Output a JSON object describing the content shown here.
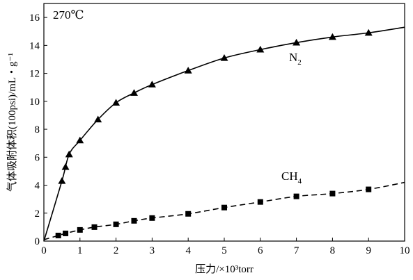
{
  "chart_data": {
    "type": "line",
    "title": "",
    "annotation": "270℃",
    "xlabel": "压力/×10³torr",
    "ylabel": "气体吸附体积(100psi)/mL・g⁻¹",
    "xlim": [
      0,
      10
    ],
    "ylim": [
      0,
      17
    ],
    "xticks": [
      "0",
      "1",
      "2",
      "3",
      "4",
      "5",
      "6",
      "7",
      "8",
      "9",
      "10"
    ],
    "yticks": [
      "0",
      "2",
      "4",
      "6",
      "8",
      "10",
      "12",
      "14",
      "16"
    ],
    "grid": false,
    "series": [
      {
        "name": "N2",
        "label_main": "N",
        "label_sub": "2",
        "line_style": "solid",
        "marker": "triangle",
        "color": "#000000",
        "points": [
          [
            0.5,
            4.3
          ],
          [
            0.6,
            5.3
          ],
          [
            0.7,
            6.2
          ],
          [
            1.0,
            7.2
          ],
          [
            1.5,
            8.7
          ],
          [
            2.0,
            9.9
          ],
          [
            2.5,
            10.6
          ],
          [
            3.0,
            11.2
          ],
          [
            4.0,
            12.2
          ],
          [
            5.0,
            13.1
          ],
          [
            6.0,
            13.7
          ],
          [
            7.0,
            14.2
          ],
          [
            8.0,
            14.6
          ],
          [
            9.0,
            14.9
          ]
        ],
        "curve": [
          [
            0,
            0
          ],
          [
            0.5,
            4.3
          ],
          [
            0.7,
            6.2
          ],
          [
            1.0,
            7.2
          ],
          [
            1.5,
            8.7
          ],
          [
            2.0,
            9.9
          ],
          [
            2.5,
            10.6
          ],
          [
            3.0,
            11.2
          ],
          [
            4.0,
            12.2
          ],
          [
            5.0,
            13.1
          ],
          [
            6.0,
            13.7
          ],
          [
            7.0,
            14.2
          ],
          [
            8.0,
            14.6
          ],
          [
            9.0,
            14.9
          ],
          [
            10.0,
            15.3
          ]
        ]
      },
      {
        "name": "CH4",
        "label_main": "CH",
        "label_sub": "4",
        "line_style": "dashed",
        "marker": "square",
        "color": "#000000",
        "points": [
          [
            0.4,
            0.4
          ],
          [
            0.6,
            0.55
          ],
          [
            1.0,
            0.8
          ],
          [
            1.4,
            1.0
          ],
          [
            2.0,
            1.2
          ],
          [
            2.5,
            1.45
          ],
          [
            3.0,
            1.65
          ],
          [
            4.0,
            1.95
          ],
          [
            5.0,
            2.4
          ],
          [
            6.0,
            2.8
          ],
          [
            7.0,
            3.2
          ],
          [
            8.0,
            3.4
          ],
          [
            9.0,
            3.7
          ]
        ],
        "curve": [
          [
            0,
            0.1
          ],
          [
            0.4,
            0.4
          ],
          [
            0.6,
            0.55
          ],
          [
            1.0,
            0.8
          ],
          [
            1.4,
            1.0
          ],
          [
            2.0,
            1.2
          ],
          [
            2.5,
            1.45
          ],
          [
            3.0,
            1.65
          ],
          [
            4.0,
            1.95
          ],
          [
            5.0,
            2.4
          ],
          [
            6.0,
            2.8
          ],
          [
            7.0,
            3.2
          ],
          [
            8.0,
            3.4
          ],
          [
            9.0,
            3.7
          ],
          [
            10.0,
            4.2
          ]
        ]
      }
    ]
  }
}
